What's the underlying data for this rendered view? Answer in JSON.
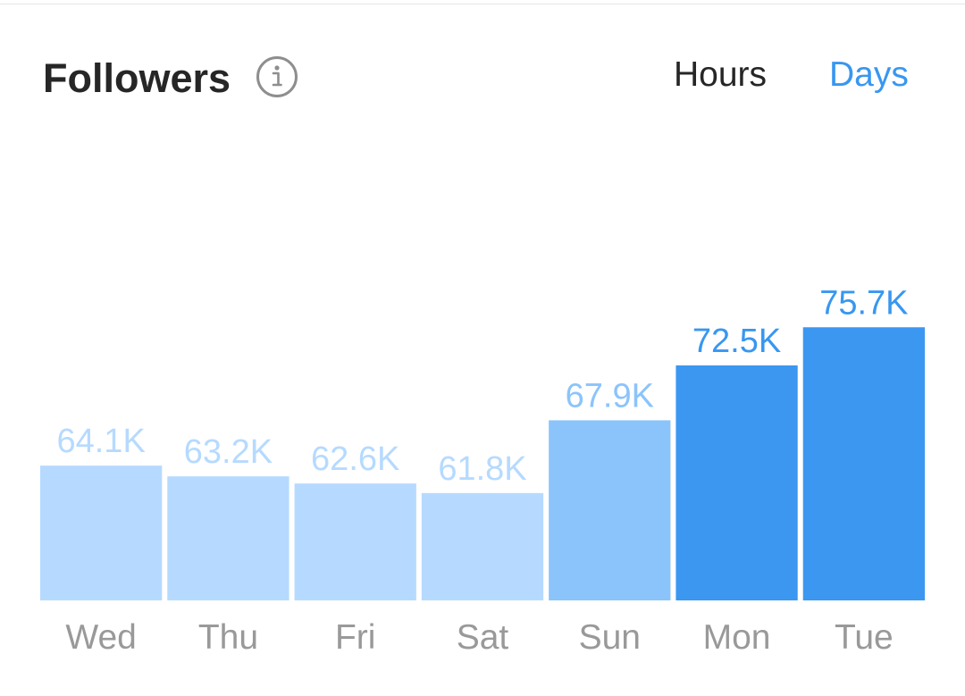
{
  "header": {
    "title": "Followers",
    "info_icon": "info-circle-icon",
    "toggle": {
      "hours_label": "Hours",
      "days_label": "Days",
      "selected": "Days"
    }
  },
  "colors": {
    "title": "#262626",
    "active_toggle": "#3897f0",
    "inactive_toggle": "#262626",
    "day_label": "#999999",
    "bar_light": "#b6daff",
    "bar_medium": "#8bc4fb",
    "bar_dark": "#3b97f0",
    "label_light": "#b6daff",
    "label_medium": "#8bc4fb",
    "label_dark": "#3897f0"
  },
  "chart_data": {
    "type": "bar",
    "categories": [
      "Wed",
      "Thu",
      "Fri",
      "Sat",
      "Sun",
      "Mon",
      "Tue"
    ],
    "values": [
      64.1,
      63.2,
      62.6,
      61.8,
      67.9,
      72.5,
      75.7
    ],
    "value_labels": [
      "64.1K",
      "63.2K",
      "62.6K",
      "61.8K",
      "67.9K",
      "72.5K",
      "75.7K"
    ],
    "value_unit": "K",
    "shades": [
      "light",
      "light",
      "light",
      "light",
      "medium",
      "dark",
      "dark"
    ],
    "title": "",
    "xlabel": "",
    "ylabel": "",
    "grid": false
  }
}
